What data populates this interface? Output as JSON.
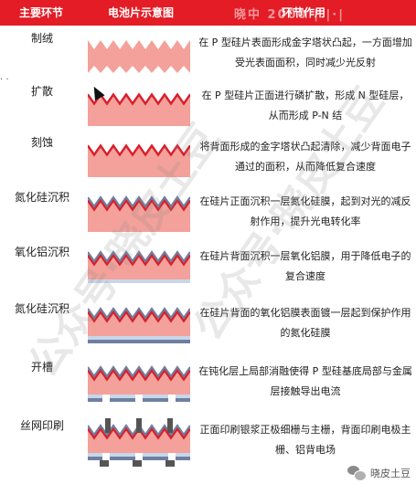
{
  "header": {
    "col_step": "主要环节",
    "col_diagram": "电池片示意图",
    "col_effect": "环节作用",
    "watermark": "晓中 2000 | |·|"
  },
  "rows": [
    {
      "step": "制绒",
      "layers": [
        "silicon"
      ],
      "effect": "在 P 型硅片表面形成金字塔状凸起，一方面增加受光表面面积，同时减少光反射"
    },
    {
      "step": "扩散",
      "layers": [
        "silicon",
        "n_layer"
      ],
      "effect": "在 P 型硅片正面进行磷扩散，形成 N 型硅层，从而形成 P-N 结"
    },
    {
      "step": "刻蚀",
      "layers": [
        "silicon",
        "n_layer"
      ],
      "effect": "将背面形成的金字塔状凸起清除，减少背面电子通过的面积，从而降低复合速度"
    },
    {
      "step": "氮化硅沉积",
      "layers": [
        "silicon",
        "n_layer",
        "sin_front"
      ],
      "effect": "在硅片正面沉积一层氮化硅膜，起到对光的减反射作用，提升光电转化率"
    },
    {
      "step": "氧化铝沉积",
      "layers": [
        "silicon",
        "n_layer",
        "sin_front",
        "alox_back"
      ],
      "effect": "在硅片背面沉积一层氧化铝膜，用于降低电子的复合速度"
    },
    {
      "step": "氮化硅沉积",
      "layers": [
        "silicon",
        "n_layer",
        "sin_front",
        "alox_back",
        "sin_back"
      ],
      "effect": "在硅片背面的氧化铝膜表面镀一层起到保护作用的氮化硅膜"
    },
    {
      "step": "开槽",
      "layers": [
        "silicon",
        "n_layer",
        "sin_front",
        "alox_back",
        "sin_back",
        "grooves"
      ],
      "effect": "在钝化层上局部消融使得 P 型硅基底局部与金属层接触导出电流"
    },
    {
      "step": "丝网印刷",
      "layers": [
        "silicon",
        "n_layer",
        "sin_front",
        "alox_back",
        "sin_back",
        "grooves",
        "front_grid",
        "back_grid"
      ],
      "effect": "正面印刷银浆正极细栅与主栅，背面印刷电极主栅、铝背电场"
    }
  ],
  "colors": {
    "header_bg": "#e31c25",
    "silicon": "#f3a19a",
    "n_layer": "#d91f2b",
    "sin": "#6f7fa0",
    "alox": "#c6d7ea",
    "back_sin": "#6f7fa0",
    "metal": "#555555"
  },
  "watermark_text": "公众号·晓皮土豆",
  "footer": {
    "icon": "wechat-icon",
    "text": "晓皮土豆"
  }
}
